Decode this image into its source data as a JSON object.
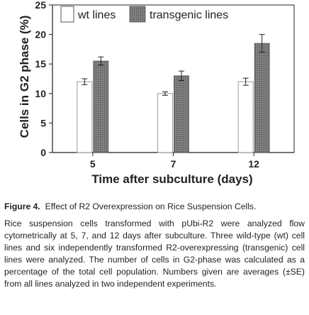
{
  "chart_data": {
    "type": "bar",
    "categories": [
      "5",
      "7",
      "12"
    ],
    "series": [
      {
        "name": "wt lines",
        "values": [
          12,
          10,
          12
        ],
        "errors": [
          0.5,
          0.3,
          0.6
        ],
        "color": "#ffffff"
      },
      {
        "name": "transgenic lines",
        "values": [
          15.5,
          13,
          18.5
        ],
        "errors": [
          0.7,
          0.8,
          1.5
        ],
        "color": "#7a7a7a"
      }
    ],
    "ylabel": "Cells in G2 phase (%)",
    "xlabel": "Time after subculture (days)",
    "ylim": [
      0,
      25
    ],
    "yticks": [
      "0",
      "5",
      "10",
      "15",
      "20",
      "25"
    ],
    "legend_position": "top-left",
    "grid": false
  },
  "caption": {
    "label": "Figure 4.",
    "title": "Effect of R2 Overexpression on Rice Suspension Cells.",
    "body": "Rice suspension cells transformed with pUbi-R2 were analyzed flow cytometrically at 5, 7, and 12 days after subculture. Three wild-type (wt) cell lines and six independently transformed R2-overexpressing (transgenic) cell lines were analyzed. The number of cells in G2-phase was calculated as a percentage of the total cell population. Numbers given are averages (±SE) from all lines analyzed in two independent experiments."
  }
}
